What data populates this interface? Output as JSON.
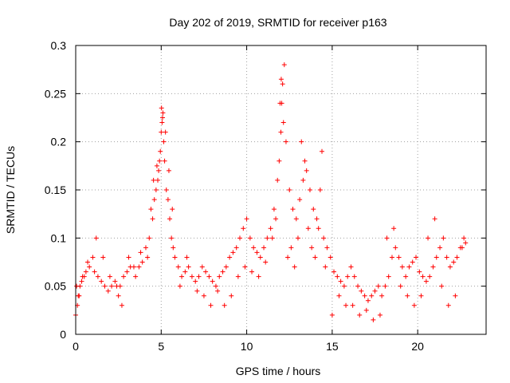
{
  "chart_data": {
    "type": "scatter",
    "title": "Day 202 of 2019, SRMTID for receiver p163",
    "xlabel": "GPS time / hours",
    "ylabel": "SRMTID / TECUs",
    "xlim": [
      0,
      24
    ],
    "ylim": [
      0,
      0.3
    ],
    "xticks": [
      0,
      5,
      10,
      15,
      20
    ],
    "xtick_labels": [
      "0",
      "5",
      "10",
      "15",
      "20"
    ],
    "yticks": [
      0,
      0.05,
      0.1,
      0.15,
      0.2,
      0.25,
      0.3
    ],
    "ytick_labels": [
      "0",
      "0.05",
      "0.1",
      "0.15",
      "0.2",
      "0.25",
      "0.3"
    ],
    "grid": true,
    "marker": "+",
    "series": [
      {
        "name": "SRMTID",
        "color": "#ff0000",
        "x": [
          0.0,
          0.1,
          0.15,
          0.25,
          0.35,
          0.5,
          0.6,
          0.8,
          1.0,
          1.1,
          1.3,
          1.5,
          1.7,
          1.9,
          2.1,
          2.3,
          2.5,
          2.6,
          2.8,
          3.0,
          3.2,
          3.5,
          3.7,
          3.9,
          4.1,
          4.3,
          4.5,
          4.6,
          4.7,
          4.8,
          4.85,
          4.9,
          4.95,
          5.0,
          5.05,
          5.1,
          5.15,
          5.2,
          5.3,
          5.4,
          5.5,
          5.6,
          5.7,
          5.8,
          6.0,
          6.2,
          6.4,
          6.6,
          6.8,
          7.0,
          7.2,
          7.4,
          7.6,
          7.8,
          8.0,
          8.2,
          8.4,
          8.6,
          8.8,
          9.0,
          9.2,
          9.4,
          9.6,
          9.8,
          10.0,
          10.2,
          10.4,
          10.6,
          10.8,
          11.0,
          11.2,
          11.4,
          11.6,
          11.8,
          11.9,
          12.0,
          12.05,
          12.1,
          12.2,
          12.3,
          12.5,
          12.7,
          12.9,
          13.1,
          13.3,
          13.5,
          13.7,
          13.9,
          14.1,
          14.3,
          14.5,
          14.7,
          14.9,
          15.1,
          15.3,
          15.5,
          15.7,
          15.9,
          16.1,
          16.3,
          16.5,
          16.7,
          16.9,
          17.1,
          17.3,
          17.5,
          17.7,
          17.9,
          18.1,
          18.3,
          18.5,
          18.7,
          18.9,
          19.1,
          19.3,
          19.5,
          19.7,
          19.9,
          20.1,
          20.3,
          20.5,
          20.7,
          20.9,
          21.1,
          21.3,
          21.5,
          21.7,
          21.9,
          22.1,
          22.3,
          22.5,
          22.7,
          22.8,
          0.05,
          0.2,
          0.4,
          0.7,
          1.2,
          1.6,
          2.0,
          2.4,
          2.7,
          3.1,
          3.4,
          3.8,
          4.2,
          4.4,
          4.55,
          4.75,
          5.02,
          5.08,
          5.25,
          5.45,
          5.65,
          6.1,
          6.5,
          7.1,
          7.5,
          7.9,
          8.3,
          8.7,
          9.1,
          9.5,
          9.9,
          10.3,
          10.7,
          11.1,
          11.5,
          11.7,
          11.95,
          12.02,
          12.15,
          12.4,
          12.6,
          12.8,
          13.0,
          13.2,
          13.4,
          13.6,
          13.8,
          14.0,
          14.2,
          14.4,
          14.6,
          15.0,
          15.4,
          15.8,
          16.2,
          16.6,
          17.0,
          17.4,
          17.8,
          18.2,
          18.6,
          19.0,
          19.4,
          19.8,
          20.2,
          20.6,
          21.0,
          21.4,
          21.8,
          22.2,
          22.6
        ],
        "y": [
          0.02,
          0.03,
          0.04,
          0.05,
          0.055,
          0.06,
          0.065,
          0.07,
          0.08,
          0.065,
          0.06,
          0.055,
          0.05,
          0.045,
          0.05,
          0.055,
          0.04,
          0.05,
          0.06,
          0.065,
          0.07,
          0.06,
          0.07,
          0.075,
          0.09,
          0.1,
          0.12,
          0.14,
          0.15,
          0.16,
          0.17,
          0.18,
          0.19,
          0.21,
          0.22,
          0.23,
          0.2,
          0.18,
          0.15,
          0.14,
          0.12,
          0.1,
          0.09,
          0.08,
          0.07,
          0.06,
          0.065,
          0.07,
          0.06,
          0.055,
          0.06,
          0.07,
          0.065,
          0.06,
          0.055,
          0.05,
          0.06,
          0.065,
          0.07,
          0.08,
          0.085,
          0.09,
          0.1,
          0.11,
          0.12,
          0.1,
          0.09,
          0.085,
          0.08,
          0.09,
          0.1,
          0.11,
          0.13,
          0.16,
          0.18,
          0.21,
          0.24,
          0.26,
          0.28,
          0.2,
          0.15,
          0.13,
          0.12,
          0.14,
          0.16,
          0.17,
          0.15,
          0.13,
          0.12,
          0.15,
          0.1,
          0.09,
          0.08,
          0.065,
          0.06,
          0.055,
          0.05,
          0.06,
          0.07,
          0.06,
          0.05,
          0.045,
          0.04,
          0.035,
          0.04,
          0.045,
          0.05,
          0.04,
          0.05,
          0.06,
          0.08,
          0.09,
          0.08,
          0.07,
          0.06,
          0.07,
          0.075,
          0.08,
          0.065,
          0.06,
          0.055,
          0.06,
          0.07,
          0.08,
          0.09,
          0.1,
          0.08,
          0.07,
          0.075,
          0.08,
          0.09,
          0.1,
          0.095,
          0.05,
          0.04,
          0.06,
          0.075,
          0.1,
          0.08,
          0.06,
          0.05,
          0.03,
          0.08,
          0.07,
          0.085,
          0.08,
          0.13,
          0.16,
          0.175,
          0.235,
          0.225,
          0.21,
          0.17,
          0.13,
          0.05,
          0.08,
          0.045,
          0.04,
          0.03,
          0.045,
          0.03,
          0.04,
          0.06,
          0.07,
          0.065,
          0.06,
          0.075,
          0.1,
          0.12,
          0.24,
          0.265,
          0.22,
          0.08,
          0.09,
          0.07,
          0.1,
          0.2,
          0.18,
          0.11,
          0.09,
          0.08,
          0.11,
          0.19,
          0.07,
          0.02,
          0.04,
          0.03,
          0.03,
          0.02,
          0.025,
          0.015,
          0.02,
          0.1,
          0.11,
          0.05,
          0.04,
          0.03,
          0.04,
          0.1,
          0.12,
          0.05,
          0.03,
          0.04,
          0.09
        ]
      }
    ]
  }
}
